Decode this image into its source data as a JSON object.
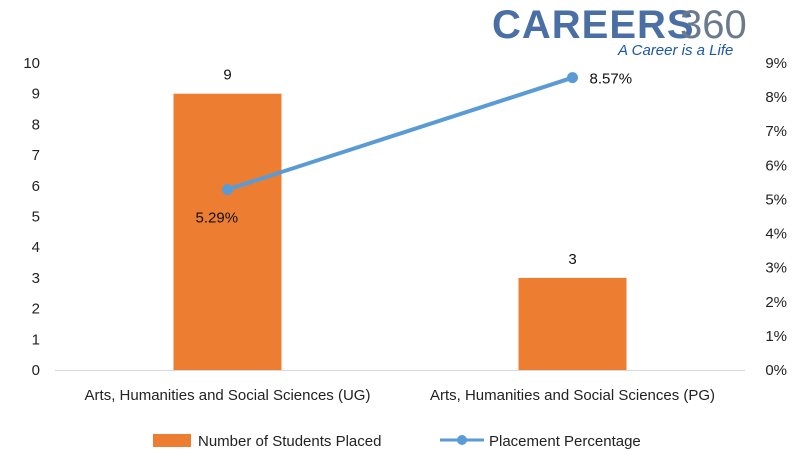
{
  "logo": {
    "word": "CAREERS",
    "number": "360",
    "tagline": "A Career is a Life",
    "word_color": "#4a6fa5",
    "number_color": "#6a7a8c",
    "tagline_color": "#1b57a8"
  },
  "chart_data": {
    "type": "bar+line",
    "categories": [
      "Arts, Humanities and Social Sciences (UG)",
      "Arts, Humanities and Social Sciences (PG)"
    ],
    "series": [
      {
        "name": "Number of Students Placed",
        "type": "bar",
        "axis": "left",
        "color": "#ed7d31",
        "values": [
          9,
          3
        ],
        "labels": [
          "9",
          "3"
        ]
      },
      {
        "name": "Placement Percentage",
        "type": "line",
        "axis": "right",
        "color": "#5b9bd5",
        "values": [
          5.29,
          8.57
        ],
        "labels": [
          "5.29%",
          "8.57%"
        ]
      }
    ],
    "y_left": {
      "min": 0,
      "max": 10,
      "step": 1,
      "ticks": [
        "0",
        "1",
        "2",
        "3",
        "4",
        "5",
        "6",
        "7",
        "8",
        "9",
        "10"
      ]
    },
    "y_right": {
      "min": 0,
      "max": 9,
      "step": 1,
      "ticks": [
        "0%",
        "1%",
        "2%",
        "3%",
        "4%",
        "5%",
        "6%",
        "7%",
        "8%",
        "9%"
      ]
    },
    "grid": false,
    "legend_position": "bottom"
  }
}
